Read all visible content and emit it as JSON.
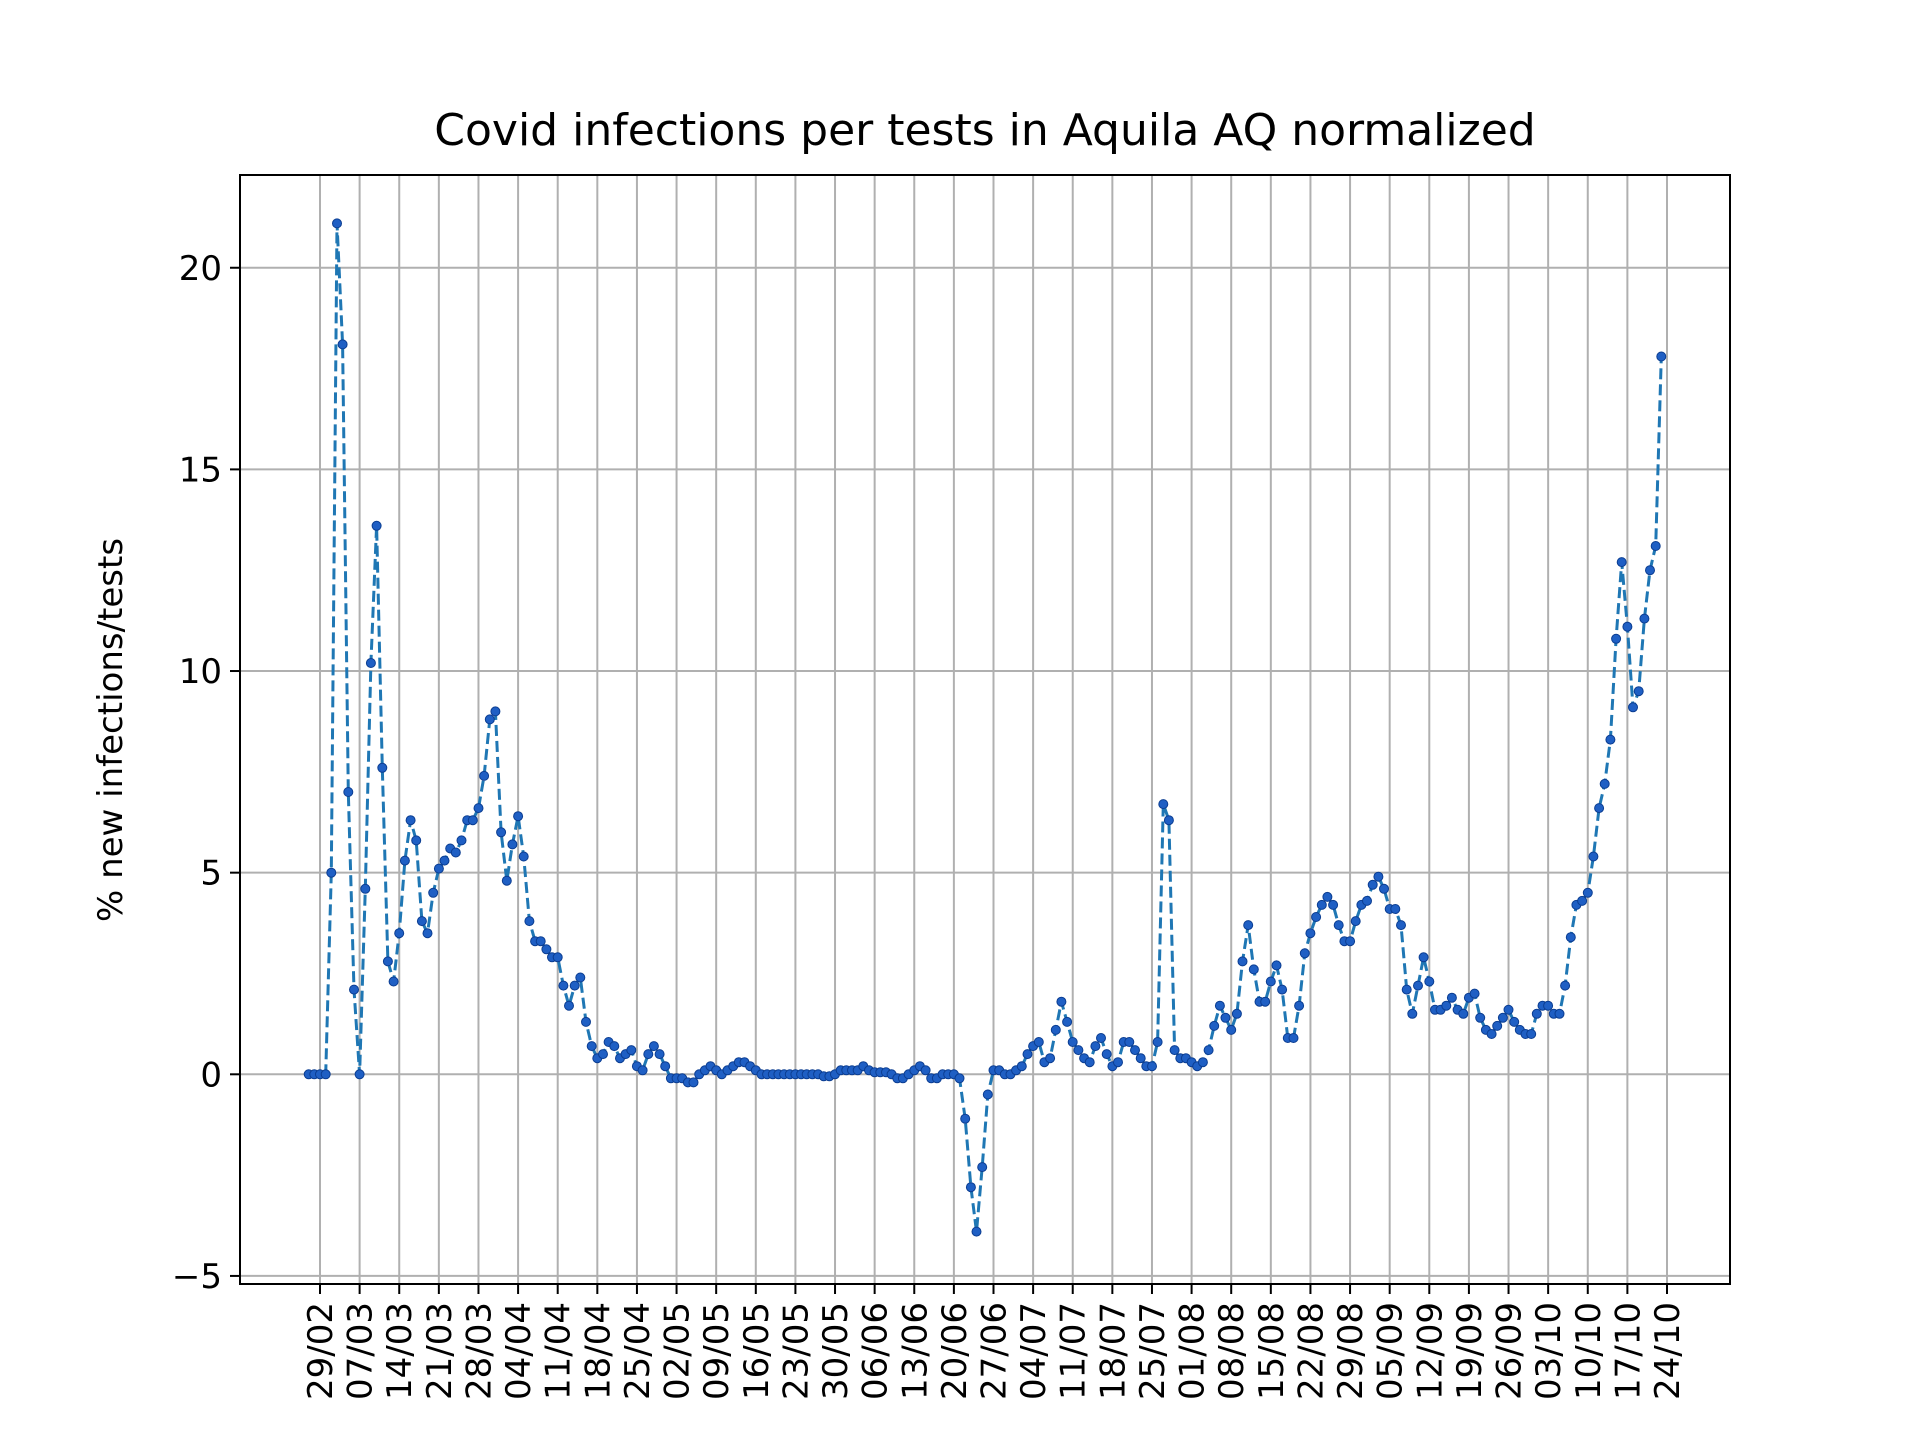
{
  "chart_data": {
    "type": "line",
    "title": "Covid infections per tests in Aquila AQ normalized",
    "xlabel": "",
    "ylabel": "% new infections/tests",
    "ylim": [
      -5.2,
      22.3
    ],
    "yticks": [
      -5,
      0,
      5,
      10,
      15,
      20
    ],
    "xtick_labels": [
      "29/02",
      "07/03",
      "14/03",
      "21/03",
      "28/03",
      "04/04",
      "11/04",
      "18/04",
      "25/04",
      "02/05",
      "09/05",
      "16/05",
      "23/05",
      "30/05",
      "06/06",
      "13/06",
      "20/06",
      "27/06",
      "04/07",
      "11/07",
      "18/07",
      "25/07",
      "01/08",
      "08/08",
      "15/08",
      "22/08",
      "29/08",
      "05/09",
      "12/09",
      "19/09",
      "26/09",
      "03/10",
      "10/10",
      "17/10",
      "24/10"
    ],
    "grid": true,
    "series": [
      {
        "color": "#1f77b4",
        "line_style": "dashed",
        "marker": "dot",
        "x_start_date": "2020-02-27",
        "values": [
          0,
          0,
          0,
          0,
          5,
          21.1,
          18.1,
          7,
          2.1,
          0,
          4.6,
          10.2,
          13.6,
          7.6,
          2.8,
          2.3,
          3.5,
          5.3,
          6.3,
          5.8,
          3.8,
          3.5,
          4.5,
          5.1,
          5.3,
          5.6,
          5.5,
          5.8,
          6.3,
          6.3,
          6.6,
          7.4,
          8.8,
          9,
          6,
          4.8,
          5.7,
          6.4,
          5.4,
          3.8,
          3.3,
          3.3,
          3.1,
          2.9,
          2.9,
          2.2,
          1.7,
          2.2,
          2.4,
          1.3,
          0.7,
          0.4,
          0.5,
          0.8,
          0.7,
          0.4,
          0.5,
          0.6,
          0.2,
          0.1,
          0.5,
          0.7,
          0.5,
          0.2,
          -0.1,
          -0.1,
          -0.1,
          -0.2,
          -0.2,
          0,
          0.1,
          0.2,
          0.1,
          0,
          0.1,
          0.2,
          0.3,
          0.3,
          0.2,
          0.1,
          0,
          0,
          0,
          0,
          0,
          0,
          0,
          0,
          0,
          0,
          0,
          -0.05,
          -0.05,
          0,
          0.1,
          0.1,
          0.1,
          0.1,
          0.2,
          0.1,
          0.05,
          0.05,
          0.05,
          0,
          -0.1,
          -0.1,
          0,
          0.1,
          0.2,
          0.1,
          -0.1,
          -0.1,
          0,
          0,
          0,
          -0.1,
          -1.1,
          -2.8,
          -3.9,
          -2.3,
          -0.5,
          0.1,
          0.1,
          0,
          0,
          0.1,
          0.2,
          0.5,
          0.7,
          0.8,
          0.3,
          0.4,
          1.1,
          1.8,
          1.3,
          0.8,
          0.6,
          0.4,
          0.3,
          0.7,
          0.9,
          0.5,
          0.2,
          0.3,
          0.8,
          0.8,
          0.6,
          0.4,
          0.2,
          0.2,
          0.8,
          6.7,
          6.3,
          0.6,
          0.4,
          0.4,
          0.3,
          0.2,
          0.3,
          0.6,
          1.2,
          1.7,
          1.4,
          1.1,
          1.5,
          2.8,
          3.7,
          2.6,
          1.8,
          1.8,
          2.3,
          2.7,
          2.1,
          0.9,
          0.9,
          1.7,
          3,
          3.5,
          3.9,
          4.2,
          4.4,
          4.2,
          3.7,
          3.3,
          3.3,
          3.8,
          4.2,
          4.3,
          4.7,
          4.9,
          4.6,
          4.1,
          4.1,
          3.7,
          2.1,
          1.5,
          2.2,
          2.9,
          2.3,
          1.6,
          1.6,
          1.7,
          1.9,
          1.6,
          1.5,
          1.9,
          2,
          1.4,
          1.1,
          1,
          1.2,
          1.4,
          1.6,
          1.3,
          1.1,
          1,
          1,
          1.5,
          1.7,
          1.7,
          1.5,
          1.5,
          2.2,
          3.4,
          4.2,
          4.3,
          4.5,
          5.4,
          6.6,
          7.2,
          8.3,
          10.8,
          12.7,
          11.1,
          9.1,
          9.5,
          11.3,
          12.5,
          13.1,
          17.8
        ]
      }
    ]
  }
}
